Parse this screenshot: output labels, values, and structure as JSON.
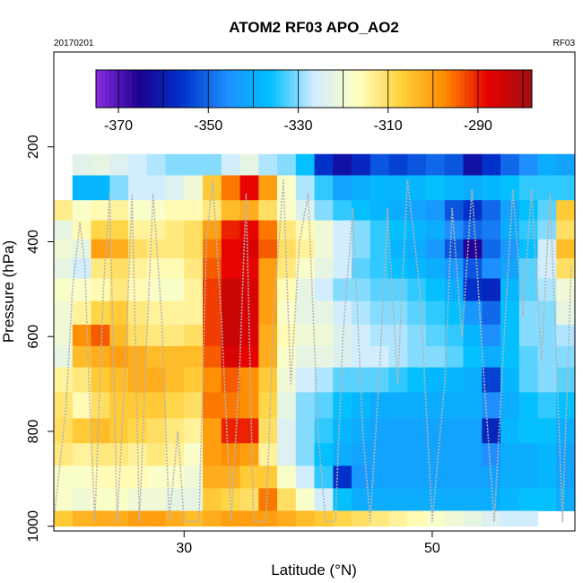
{
  "chart_data": {
    "type": "heatmap",
    "title": "ATOM2 RF03 APO_AO2",
    "date_label": "20170201",
    "flight_label": "RF03",
    "xlabel": "Latitude (°N)",
    "ylabel": "Pressure (hPa)",
    "xlim": [
      19.5,
      61.5
    ],
    "ylim": [
      1010,
      0
    ],
    "x_ticks": [
      30,
      50
    ],
    "x_tick_labels": [
      "30",
      "50"
    ],
    "y_ticks": [
      200,
      400,
      600,
      800,
      1000
    ],
    "y_tick_labels": [
      "200",
      "400",
      "600",
      "800",
      "1000"
    ],
    "colorbar": {
      "range": [
        -375,
        -278
      ],
      "ticks": [
        -370,
        -350,
        -330,
        -310,
        -290
      ],
      "tick_labels": [
        "-370",
        "-350",
        "-330",
        "-310",
        "-290"
      ],
      "stops": [
        "#8a2be2",
        "#1a0090",
        "#0033cc",
        "#1e90ff",
        "#00bfff",
        "#d0ecff",
        "#ffffc0",
        "#ffd23c",
        "#ff8c00",
        "#e60000",
        "#a01010"
      ]
    },
    "grid": false,
    "legend": "colorbar-top",
    "pressure_levels": [
      230,
      290,
      335,
      375,
      415,
      455,
      500,
      550,
      600,
      640,
      690,
      745,
      800,
      850,
      895,
      945,
      990
    ],
    "columns": [
      {
        "x": [
          19.5,
          21.0
        ],
        "levels": {
          "335": -313,
          "375": -322,
          "415": -320,
          "455": -322,
          "500": -318,
          "550": -320,
          "600": -320,
          "640": -322,
          "690": -314,
          "745": -311,
          "800": -310,
          "850": -312,
          "895": -318,
          "945": -318,
          "990": -306
        }
      },
      {
        "x": [
          21.0,
          22.5
        ],
        "levels": {
          "230": -323,
          "290": -338,
          "335": -318,
          "375": -316,
          "415": -322,
          "455": -326,
          "500": -318,
          "550": -314,
          "600": -298,
          "640": -304,
          "690": -312,
          "745": -316,
          "800": -306,
          "850": -314,
          "895": -318,
          "945": -320,
          "990": -303
        }
      },
      {
        "x": [
          22.5,
          24.0
        ],
        "levels": {
          "230": -322,
          "290": -338,
          "335": -316,
          "375": -308,
          "415": -300,
          "455": -312,
          "500": -316,
          "550": -308,
          "600": -294,
          "640": -302,
          "690": -306,
          "745": -310,
          "800": -304,
          "850": -312,
          "895": -316,
          "945": -318,
          "990": -302
        }
      },
      {
        "x": [
          24.0,
          25.5
        ],
        "levels": {
          "230": -324,
          "290": -330,
          "335": -314,
          "375": -308,
          "415": -302,
          "455": -310,
          "500": -312,
          "550": -306,
          "600": -304,
          "640": -300,
          "690": -304,
          "745": -306,
          "800": -306,
          "850": -312,
          "895": -316,
          "945": -318,
          "990": -302
        }
      },
      {
        "x": [
          25.5,
          27.0
        ],
        "levels": {
          "230": -326,
          "290": -326,
          "335": -318,
          "375": -314,
          "415": -310,
          "455": -314,
          "500": -316,
          "550": -312,
          "600": -310,
          "640": -302,
          "690": -302,
          "745": -306,
          "800": -308,
          "850": -314,
          "895": -316,
          "945": -320,
          "990": -300
        }
      },
      {
        "x": [
          27.0,
          28.5
        ],
        "levels": {
          "230": -328,
          "290": -326,
          "335": -318,
          "375": -314,
          "415": -312,
          "455": -316,
          "500": -318,
          "550": -314,
          "600": -312,
          "640": -304,
          "690": -302,
          "745": -306,
          "800": -310,
          "850": -312,
          "895": -318,
          "945": -320,
          "990": -300
        }
      },
      {
        "x": [
          28.5,
          30.0
        ],
        "levels": {
          "230": -330,
          "290": -324,
          "335": -316,
          "375": -312,
          "415": -312,
          "455": -316,
          "500": -318,
          "550": -314,
          "600": -312,
          "640": -304,
          "690": -304,
          "745": -308,
          "800": -312,
          "850": -314,
          "895": -318,
          "945": -322,
          "990": -302
        }
      },
      {
        "x": [
          30.0,
          31.5
        ],
        "levels": {
          "230": -330,
          "290": -320,
          "335": -316,
          "375": -310,
          "415": -310,
          "455": -312,
          "500": -314,
          "550": -314,
          "600": -310,
          "640": -304,
          "690": -306,
          "745": -310,
          "800": -314,
          "850": -318,
          "895": -320,
          "945": -322,
          "990": -304
        }
      },
      {
        "x": [
          31.5,
          33.0
        ],
        "levels": {
          "230": -330,
          "290": -306,
          "335": -312,
          "375": -300,
          "415": -296,
          "455": -294,
          "500": -292,
          "550": -292,
          "600": -292,
          "640": -294,
          "690": -298,
          "745": -296,
          "800": -300,
          "850": -300,
          "895": -302,
          "945": -306,
          "990": -302
        }
      },
      {
        "x": [
          33.0,
          34.5
        ],
        "levels": {
          "230": -326,
          "290": -296,
          "335": -304,
          "375": -290,
          "415": -288,
          "455": -288,
          "500": -284,
          "550": -284,
          "600": -284,
          "640": -286,
          "690": -294,
          "745": -296,
          "800": -290,
          "850": -298,
          "895": -302,
          "945": -308,
          "990": -300
        }
      },
      {
        "x": [
          34.5,
          36.0
        ],
        "levels": {
          "230": -322,
          "290": -288,
          "335": -302,
          "375": -288,
          "415": -286,
          "455": -288,
          "500": -286,
          "550": -286,
          "600": -286,
          "640": -288,
          "690": -298,
          "745": -298,
          "800": -290,
          "850": -300,
          "895": -306,
          "945": -310,
          "990": -300
        }
      },
      {
        "x": [
          36.0,
          37.5
        ],
        "levels": {
          "230": -328,
          "290": -300,
          "335": -310,
          "375": -296,
          "415": -294,
          "455": -300,
          "500": -300,
          "550": -300,
          "600": -302,
          "640": -302,
          "690": -306,
          "745": -308,
          "800": -310,
          "850": -314,
          "895": -306,
          "945": -296,
          "990": -300
        }
      },
      {
        "x": [
          37.5,
          39.0
        ],
        "levels": {
          "230": -330,
          "290": -318,
          "335": -318,
          "375": -312,
          "415": -310,
          "455": -312,
          "500": -316,
          "550": -318,
          "600": -316,
          "640": -318,
          "690": -320,
          "745": -322,
          "800": -324,
          "850": -324,
          "895": -318,
          "945": -310,
          "990": -302
        }
      },
      {
        "x": [
          39.0,
          40.5
        ],
        "levels": {
          "230": -336,
          "290": -328,
          "335": -324,
          "375": -316,
          "415": -314,
          "455": -318,
          "500": -322,
          "550": -322,
          "600": -320,
          "640": -322,
          "690": -326,
          "745": -330,
          "800": -330,
          "850": -330,
          "895": -326,
          "945": -318,
          "990": -304
        }
      },
      {
        "x": [
          40.5,
          42.0
        ],
        "levels": {
          "230": -356,
          "290": -334,
          "335": -330,
          "375": -320,
          "415": -320,
          "455": -322,
          "500": -326,
          "550": -322,
          "600": -320,
          "640": -322,
          "690": -328,
          "745": -332,
          "800": -334,
          "850": -336,
          "895": -334,
          "945": -326,
          "990": -306
        }
      },
      {
        "x": [
          42.0,
          43.5
        ],
        "levels": {
          "230": -362,
          "290": -342,
          "335": -334,
          "375": -326,
          "415": -326,
          "455": -326,
          "500": -330,
          "550": -326,
          "600": -324,
          "640": -324,
          "690": -332,
          "745": -336,
          "800": -338,
          "850": -340,
          "895": -356,
          "945": -336,
          "990": -308
        }
      },
      {
        "x": [
          43.5,
          45.0
        ],
        "levels": {
          "230": -358,
          "290": -340,
          "335": -336,
          "375": -330,
          "415": -330,
          "455": -332,
          "500": -330,
          "550": -328,
          "600": -326,
          "640": -326,
          "690": -332,
          "745": -338,
          "800": -340,
          "850": -342,
          "895": -344,
          "945": -340,
          "990": -310
        }
      },
      {
        "x": [
          45.0,
          46.5
        ],
        "levels": {
          "230": -352,
          "290": -338,
          "335": -338,
          "375": -334,
          "415": -334,
          "455": -334,
          "500": -332,
          "550": -330,
          "600": -328,
          "640": -326,
          "690": -332,
          "745": -340,
          "800": -342,
          "850": -342,
          "895": -342,
          "945": -340,
          "990": -312
        }
      },
      {
        "x": [
          46.5,
          48.0
        ],
        "levels": {
          "230": -354,
          "290": -338,
          "335": -340,
          "375": -336,
          "415": -338,
          "455": -336,
          "500": -332,
          "550": -330,
          "600": -328,
          "640": -328,
          "690": -334,
          "745": -340,
          "800": -342,
          "850": -342,
          "895": -342,
          "945": -340,
          "990": -314
        }
      },
      {
        "x": [
          48.0,
          49.5
        ],
        "levels": {
          "230": -352,
          "290": -338,
          "335": -342,
          "375": -338,
          "415": -340,
          "455": -338,
          "500": -334,
          "550": -332,
          "600": -330,
          "640": -330,
          "690": -336,
          "745": -340,
          "800": -342,
          "850": -342,
          "895": -342,
          "945": -340,
          "990": -316
        }
      },
      {
        "x": [
          49.5,
          51.0
        ],
        "levels": {
          "230": -350,
          "290": -336,
          "335": -344,
          "375": -340,
          "415": -344,
          "455": -340,
          "500": -336,
          "550": -334,
          "600": -332,
          "640": -330,
          "690": -338,
          "745": -340,
          "800": -342,
          "850": -342,
          "895": -342,
          "945": -340,
          "990": -318
        }
      },
      {
        "x": [
          51.0,
          52.5
        ],
        "levels": {
          "230": -352,
          "290": -338,
          "335": -352,
          "375": -346,
          "415": -352,
          "455": -344,
          "500": -340,
          "550": -336,
          "600": -334,
          "640": -332,
          "690": -338,
          "745": -340,
          "800": -342,
          "850": -342,
          "895": -342,
          "945": -340,
          "990": -320
        }
      },
      {
        "x": [
          52.5,
          54.0
        ],
        "levels": {
          "230": -362,
          "290": -340,
          "335": -356,
          "375": -350,
          "415": -366,
          "455": -352,
          "500": -356,
          "550": -344,
          "600": -338,
          "640": -336,
          "690": -340,
          "745": -340,
          "800": -342,
          "850": -342,
          "895": -342,
          "945": -340,
          "990": -322
        }
      },
      {
        "x": [
          54.0,
          55.5
        ],
        "levels": {
          "230": -356,
          "290": -338,
          "335": -350,
          "375": -348,
          "415": -350,
          "455": -346,
          "500": -358,
          "550": -350,
          "600": -346,
          "640": -340,
          "690": -354,
          "745": -346,
          "800": -358,
          "850": -346,
          "895": -342,
          "945": -340,
          "990": -324
        }
      },
      {
        "x": [
          55.5,
          57.0
        ],
        "levels": {
          "230": -350,
          "290": -336,
          "335": -342,
          "375": -340,
          "415": -344,
          "455": -342,
          "500": -338,
          "550": -336,
          "600": -336,
          "640": -336,
          "690": -338,
          "745": -340,
          "800": -338,
          "850": -340,
          "895": -340,
          "945": -338,
          "990": -326
        }
      },
      {
        "x": [
          57.0,
          58.5
        ],
        "levels": {
          "230": -346,
          "290": -334,
          "335": -336,
          "375": -334,
          "415": -336,
          "455": -332,
          "500": -332,
          "550": -330,
          "600": -330,
          "640": -332,
          "690": -332,
          "745": -336,
          "800": -336,
          "850": -340,
          "895": -340,
          "945": -336,
          "990": -326
        }
      },
      {
        "x": [
          58.5,
          60.0
        ],
        "levels": {
          "230": -340,
          "290": -334,
          "335": -332,
          "375": -330,
          "415": -326,
          "455": -326,
          "500": -328,
          "550": -330,
          "600": -330,
          "640": -330,
          "690": -330,
          "745": -334,
          "800": -336,
          "850": -338,
          "895": -338,
          "945": -336
        }
      },
      {
        "x": [
          60.0,
          61.5
        ],
        "levels": {
          "230": -342,
          "290": -334,
          "335": -306,
          "375": -310,
          "415": -304,
          "455": -310,
          "500": -320,
          "550": -322,
          "600": -328,
          "640": -330,
          "690": -332,
          "745": -336,
          "800": -340,
          "850": -342,
          "895": -342,
          "945": -340
        }
      }
    ],
    "flight_track": [
      [
        19.5,
        990
      ],
      [
        20.5,
        745
      ],
      [
        21.0,
        500
      ],
      [
        21.6,
        360
      ],
      [
        22.0,
        450
      ],
      [
        22.4,
        745
      ],
      [
        22.8,
        990
      ],
      [
        23.5,
        500
      ],
      [
        24.0,
        300
      ],
      [
        24.6,
        990
      ],
      [
        25.2,
        700
      ],
      [
        25.8,
        300
      ],
      [
        26.4,
        990
      ],
      [
        27.0,
        600
      ],
      [
        27.5,
        300
      ],
      [
        28.2,
        560
      ],
      [
        28.8,
        990
      ],
      [
        29.5,
        800
      ],
      [
        30.0,
        990
      ],
      [
        31.2,
        990
      ],
      [
        31.8,
        400
      ],
      [
        32.3,
        270
      ],
      [
        33.0,
        560
      ],
      [
        33.8,
        990
      ],
      [
        34.5,
        650
      ],
      [
        35.0,
        300
      ],
      [
        35.6,
        990
      ],
      [
        36.6,
        990
      ],
      [
        37.2,
        560
      ],
      [
        38.0,
        270
      ],
      [
        38.6,
        700
      ],
      [
        39.3,
        400
      ],
      [
        40.0,
        300
      ],
      [
        40.8,
        800
      ],
      [
        41.4,
        990
      ],
      [
        42.2,
        990
      ],
      [
        42.8,
        600
      ],
      [
        43.6,
        330
      ],
      [
        44.4,
        800
      ],
      [
        45.0,
        990
      ],
      [
        45.8,
        650
      ],
      [
        46.4,
        330
      ],
      [
        47.2,
        700
      ],
      [
        48.0,
        270
      ],
      [
        49.0,
        500
      ],
      [
        50.0,
        990
      ],
      [
        51.0,
        700
      ],
      [
        51.6,
        330
      ],
      [
        52.4,
        600
      ],
      [
        53.2,
        290
      ],
      [
        54.2,
        700
      ],
      [
        55.0,
        990
      ],
      [
        55.8,
        600
      ],
      [
        56.5,
        290
      ],
      [
        57.3,
        560
      ],
      [
        58.0,
        290
      ],
      [
        58.8,
        650
      ],
      [
        59.5,
        300
      ],
      [
        60.5,
        990
      ],
      [
        61.2,
        450
      ]
    ]
  }
}
